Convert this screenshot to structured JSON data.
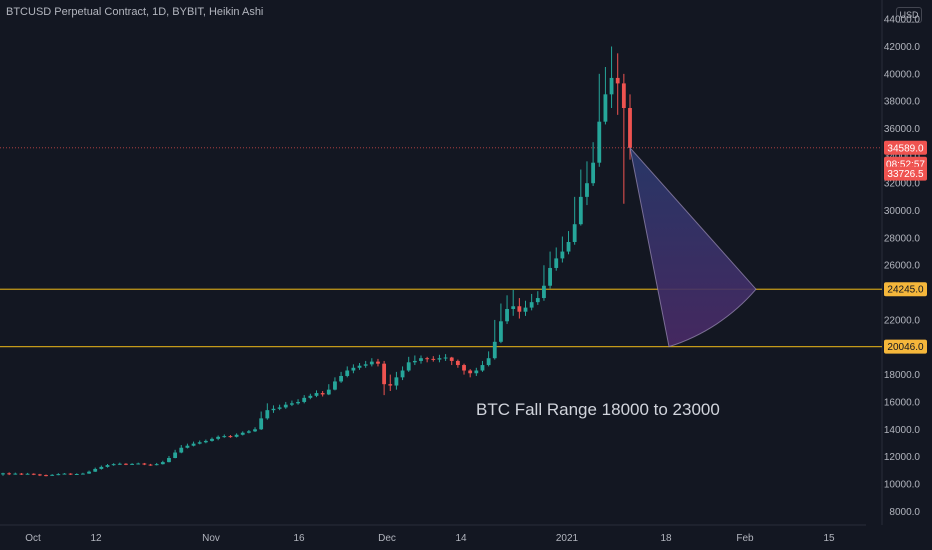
{
  "header": {
    "title": "BTCUSD Perpetual Contract, 1D, BYBIT, Heikin Ashi",
    "currency": "USD"
  },
  "annotation": "BTC Fall Range  18000 to 23000",
  "colors": {
    "background": "#131722",
    "up": "#26a69a",
    "down": "#ef5350",
    "level_line": "#c49a1a",
    "price_line": "#ef5350",
    "axis_text": "#b2b5be"
  },
  "chart_data": {
    "type": "candlestick",
    "style": "Heikin Ashi",
    "timeframe": "1D",
    "exchange": "BYBIT",
    "symbol": "BTCUSD",
    "x_ticks": [
      "Oct",
      "12",
      "Nov",
      "16",
      "Dec",
      "14",
      "2021",
      "18",
      "Feb",
      "15"
    ],
    "y_ticks": [
      8000,
      10000,
      12000,
      14000,
      16000,
      18000,
      20000,
      22000,
      24000,
      26000,
      28000,
      30000,
      32000,
      34000,
      36000,
      38000,
      40000,
      42000,
      44000
    ],
    "ylim": [
      7000,
      45400
    ],
    "grid": false,
    "price_labels": [
      {
        "value": "34589.0",
        "kind": "current"
      },
      {
        "value": "08:52:57",
        "kind": "countdown"
      },
      {
        "value": "33726.5",
        "kind": "low"
      },
      {
        "value": "24245.0",
        "kind": "level"
      },
      {
        "value": "20046.0",
        "kind": "level"
      }
    ],
    "horizontal_levels": [
      24245,
      20046
    ],
    "current_price": 34589,
    "fall_range_projection": {
      "from": 34589,
      "upper": 24245,
      "lower": 20046
    },
    "candles": [
      [
        10700,
        10780,
        10600,
        10820
      ],
      [
        10780,
        10730,
        10650,
        10850
      ],
      [
        10730,
        10760,
        10680,
        10830
      ],
      [
        10760,
        10740,
        10660,
        10800
      ],
      [
        10740,
        10750,
        10690,
        10810
      ],
      [
        10750,
        10700,
        10650,
        10780
      ],
      [
        10700,
        10650,
        10580,
        10740
      ],
      [
        10650,
        10620,
        10560,
        10690
      ],
      [
        10620,
        10670,
        10600,
        10720
      ],
      [
        10670,
        10720,
        10640,
        10790
      ],
      [
        10720,
        10760,
        10700,
        10800
      ],
      [
        10760,
        10700,
        10660,
        10790
      ],
      [
        10700,
        10730,
        10680,
        10780
      ],
      [
        10730,
        10760,
        10700,
        10820
      ],
      [
        10760,
        10900,
        10740,
        10980
      ],
      [
        10900,
        11100,
        10880,
        11200
      ],
      [
        11100,
        11250,
        11050,
        11350
      ],
      [
        11250,
        11380,
        11200,
        11460
      ],
      [
        11380,
        11450,
        11330,
        11520
      ],
      [
        11450,
        11480,
        11400,
        11560
      ],
      [
        11480,
        11430,
        11380,
        11520
      ],
      [
        11430,
        11470,
        11400,
        11520
      ],
      [
        11470,
        11500,
        11420,
        11560
      ],
      [
        11500,
        11420,
        11380,
        11540
      ],
      [
        11420,
        11380,
        11330,
        11470
      ],
      [
        11380,
        11450,
        11360,
        11540
      ],
      [
        11450,
        11600,
        11420,
        11700
      ],
      [
        11600,
        11900,
        11580,
        12050
      ],
      [
        11900,
        12300,
        11880,
        12500
      ],
      [
        12300,
        12650,
        12250,
        12850
      ],
      [
        12650,
        12800,
        12600,
        12950
      ],
      [
        12800,
        12950,
        12750,
        13100
      ],
      [
        12950,
        13050,
        12900,
        13180
      ],
      [
        13050,
        13150,
        12980,
        13250
      ],
      [
        13150,
        13300,
        13100,
        13400
      ],
      [
        13300,
        13450,
        13200,
        13550
      ],
      [
        13450,
        13500,
        13380,
        13620
      ],
      [
        13500,
        13450,
        13380,
        13580
      ],
      [
        13450,
        13600,
        13400,
        13700
      ],
      [
        13600,
        13750,
        13550,
        13850
      ],
      [
        13750,
        13850,
        13700,
        13950
      ],
      [
        13850,
        14000,
        13800,
        14150
      ],
      [
        14000,
        14800,
        13950,
        15300
      ],
      [
        14800,
        15400,
        14700,
        15900
      ],
      [
        15400,
        15500,
        15200,
        15750
      ],
      [
        15500,
        15600,
        15400,
        15800
      ],
      [
        15600,
        15800,
        15500,
        16000
      ],
      [
        15800,
        15900,
        15700,
        16100
      ],
      [
        15900,
        16000,
        15800,
        16200
      ],
      [
        16000,
        16300,
        15900,
        16500
      ],
      [
        16300,
        16450,
        16200,
        16600
      ],
      [
        16450,
        16650,
        16350,
        16850
      ],
      [
        16650,
        16550,
        16400,
        16800
      ],
      [
        16550,
        16900,
        16500,
        17300
      ],
      [
        16900,
        17500,
        16850,
        17800
      ],
      [
        17500,
        17900,
        17400,
        18200
      ],
      [
        17900,
        18300,
        17800,
        18600
      ],
      [
        18300,
        18500,
        18100,
        18750
      ],
      [
        18500,
        18650,
        18350,
        18850
      ],
      [
        18650,
        18750,
        18500,
        19000
      ],
      [
        18750,
        18950,
        18600,
        19200
      ],
      [
        18950,
        18800,
        18600,
        19150
      ],
      [
        18800,
        17300,
        16500,
        19000
      ],
      [
        17300,
        17200,
        16800,
        18000
      ],
      [
        17200,
        17800,
        16900,
        18200
      ],
      [
        17800,
        18300,
        17600,
        18600
      ],
      [
        18300,
        18900,
        18200,
        19300
      ],
      [
        18900,
        19000,
        18700,
        19400
      ],
      [
        19000,
        19200,
        18800,
        19400
      ],
      [
        19200,
        19150,
        18900,
        19300
      ],
      [
        19150,
        19100,
        18950,
        19350
      ],
      [
        19100,
        19200,
        18900,
        19450
      ],
      [
        19200,
        19250,
        19000,
        19500
      ],
      [
        19250,
        19000,
        18700,
        19300
      ],
      [
        19000,
        18700,
        18500,
        19100
      ],
      [
        18700,
        18300,
        18000,
        18800
      ],
      [
        18300,
        18100,
        17800,
        18400
      ],
      [
        18100,
        18300,
        17900,
        18500
      ],
      [
        18300,
        18700,
        18200,
        19000
      ],
      [
        18700,
        19200,
        18600,
        19700
      ],
      [
        19200,
        20400,
        19100,
        22000
      ],
      [
        20400,
        21900,
        20300,
        23200
      ],
      [
        21900,
        22800,
        21700,
        23800
      ],
      [
        22800,
        23000,
        22300,
        24200
      ],
      [
        23000,
        22600,
        22100,
        23600
      ],
      [
        22600,
        22900,
        22300,
        23400
      ],
      [
        22900,
        23300,
        22700,
        23900
      ],
      [
        23300,
        23600,
        23100,
        24100
      ],
      [
        23600,
        24500,
        23400,
        26000
      ],
      [
        24500,
        25800,
        24300,
        27000
      ],
      [
        25800,
        26500,
        25600,
        27300
      ],
      [
        26500,
        27000,
        26200,
        28100
      ],
      [
        27000,
        27700,
        26800,
        28500
      ],
      [
        27700,
        29000,
        27500,
        31000
      ],
      [
        29000,
        31000,
        28900,
        33000
      ],
      [
        31000,
        32000,
        30400,
        33600
      ],
      [
        32000,
        33500,
        31800,
        35000
      ],
      [
        33500,
        36500,
        33200,
        40000
      ],
      [
        36500,
        38500,
        36300,
        40500
      ],
      [
        38500,
        39700,
        37500,
        42000
      ],
      [
        39700,
        39300,
        37000,
        41500
      ],
      [
        39300,
        37500,
        30500,
        40000
      ],
      [
        37500,
        34589,
        33726,
        38500
      ]
    ]
  }
}
